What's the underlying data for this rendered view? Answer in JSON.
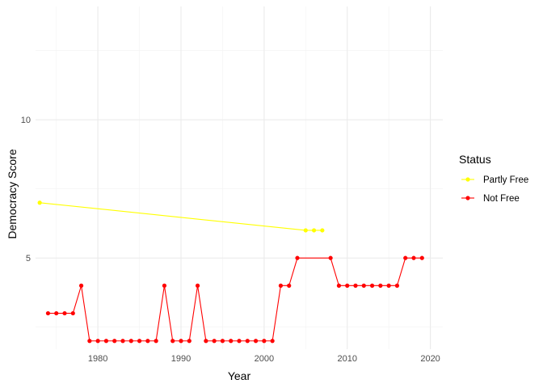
{
  "chart_data": {
    "type": "line",
    "title": "",
    "xlabel": "Year",
    "ylabel": "Democracy Score",
    "xlim": [
      1972.5,
      2021.5
    ],
    "ylim": [
      1.7,
      14.1
    ],
    "x_ticks": [
      1980,
      1990,
      2000,
      2010,
      2020
    ],
    "y_ticks": [
      5,
      10
    ],
    "grid": true,
    "legend": {
      "title": "Status",
      "placement": "right"
    },
    "series": [
      {
        "name": "Partly Free",
        "color": "#FFFF00",
        "x": [
          1973,
          2005,
          2006,
          2007
        ],
        "y": [
          7,
          6,
          6,
          6
        ]
      },
      {
        "name": "Not Free",
        "color": "#FF0000",
        "x": [
          1974,
          1975,
          1976,
          1977,
          1978,
          1979,
          1980,
          1981,
          1982,
          1983,
          1984,
          1985,
          1986,
          1987,
          1988,
          1989,
          1990,
          1991,
          1992,
          1993,
          1994,
          1995,
          1996,
          1997,
          1998,
          1999,
          2000,
          2001,
          2002,
          2003,
          2004,
          2008,
          2009,
          2010,
          2011,
          2012,
          2013,
          2014,
          2015,
          2016,
          2017,
          2018,
          2019
        ],
        "y": [
          3,
          3,
          3,
          3,
          4,
          2,
          2,
          2,
          2,
          2,
          2,
          2,
          2,
          2,
          4,
          2,
          2,
          2,
          4,
          2,
          2,
          2,
          2,
          2,
          2,
          2,
          2,
          2,
          4,
          4,
          5,
          5,
          4,
          4,
          4,
          4,
          4,
          4,
          4,
          4,
          5,
          5,
          5
        ]
      }
    ]
  }
}
